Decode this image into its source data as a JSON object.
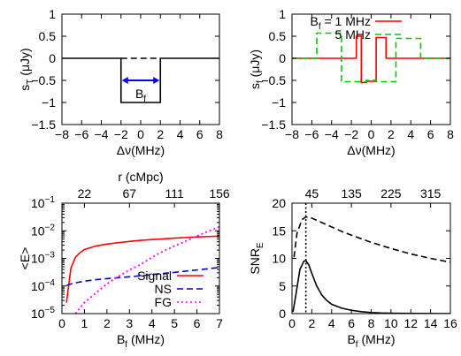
{
  "chart_data": [
    {
      "id": "a",
      "type": "line",
      "xlabel": "Δν(MHz)",
      "ylabel": "s_T (μJy)",
      "xlim": [
        -8,
        8
      ],
      "ylim": [
        -1.5,
        1
      ],
      "xticks": [
        -8,
        -6,
        -4,
        -2,
        0,
        2,
        4,
        6,
        8
      ],
      "yticks": [
        -1.5,
        -1,
        -0.5,
        0,
        0.5,
        1
      ],
      "ytick_labels": [
        "−1.5",
        "−1",
        "−0.5",
        "0",
        "0.5",
        "1"
      ],
      "xtick_labels": [
        "−8",
        "−6",
        "−4",
        "−2",
        "0",
        "2",
        "4",
        "6",
        "8"
      ],
      "series": [
        {
          "style": "solid",
          "color": "#000000",
          "x": [
            -8,
            -2,
            -2,
            2,
            2,
            8
          ],
          "y": [
            0,
            0,
            -1,
            -1,
            0,
            0
          ]
        },
        {
          "style": "dashed",
          "color": "#000000",
          "x": [
            -2,
            2
          ],
          "y": [
            0,
            0
          ]
        }
      ],
      "annotation": {
        "text": "B",
        "sub": "f",
        "x_from": -2,
        "x_to": 2,
        "y": -0.5,
        "color": "#0000ff"
      }
    },
    {
      "id": "b",
      "type": "line",
      "xlabel": "Δν(MHz)",
      "ylabel": "s_f (μJy)",
      "xlim": [
        -8,
        8
      ],
      "ylim": [
        -1.5,
        1
      ],
      "xticks": [
        -8,
        -6,
        -4,
        -2,
        0,
        2,
        4,
        6,
        8
      ],
      "yticks": [
        -1.5,
        -1,
        -0.5,
        0,
        0.5,
        1
      ],
      "ytick_labels": [
        "−1.5",
        "−1",
        "−0.5",
        "0",
        "0.5",
        "1"
      ],
      "xtick_labels": [
        "−8",
        "−6",
        "−4",
        "−2",
        "0",
        "2",
        "4",
        "6",
        "8"
      ],
      "legend_position": "top-right",
      "series": [
        {
          "name": "B_f = 1 MHz",
          "legend_main": "B",
          "legend_sub": "f",
          "legend_rest": " = 1 MHz",
          "style": "solid",
          "color": "#ff0000",
          "x": [
            -8,
            -1.5,
            -1.5,
            -1,
            -1,
            -0.5,
            -0.5,
            0.5,
            0.5,
            1,
            1,
            1.5,
            1.5,
            8
          ],
          "y": [
            0,
            0,
            0.5,
            0.5,
            -0.55,
            -0.55,
            -0.52,
            -0.52,
            0.47,
            0.47,
            0.47,
            0.47,
            0,
            0
          ]
        },
        {
          "name": "5 MHz",
          "legend_main": "5 MHz",
          "legend_sub": "",
          "legend_rest": "",
          "style": "dashed",
          "color": "#00cc00",
          "x": [
            -8,
            -5.5,
            -5.5,
            -3,
            -3,
            -0.5,
            -0.5,
            0.5,
            0.5,
            2.5,
            2.5,
            5,
            5,
            8
          ],
          "y": [
            0,
            0,
            0.57,
            0.57,
            -0.53,
            -0.53,
            -0.5,
            -0.5,
            -0.53,
            -0.53,
            0.45,
            0.45,
            0,
            0
          ]
        }
      ]
    },
    {
      "id": "c",
      "type": "line",
      "xlabel": "B_f (MHz)",
      "ylabel": "<E>",
      "top_xlabel": "r (cMpc)",
      "xlim": [
        0,
        7
      ],
      "ylim": [
        1e-05,
        0.1
      ],
      "yscale": "log",
      "xticks": [
        0,
        1,
        2,
        3,
        4,
        5,
        6,
        7
      ],
      "yticks": [
        1e-05,
        0.0001,
        0.001,
        0.01,
        0.1
      ],
      "ytick_labels": [
        [
          "10",
          "−5"
        ],
        [
          "10",
          "−4"
        ],
        [
          "10",
          "−3"
        ],
        [
          "10",
          "−2"
        ],
        [
          "10",
          "−1"
        ]
      ],
      "top_ticks": [
        {
          "label": "22",
          "x": 1
        },
        {
          "label": "67",
          "x": 3
        },
        {
          "label": "111",
          "x": 5
        },
        {
          "label": "156",
          "x": 7
        }
      ],
      "legend_position": "bottom-center",
      "series": [
        {
          "name": "Signal",
          "style": "solid",
          "color": "#ff0000",
          "x": [
            0.2,
            0.4,
            0.6,
            0.8,
            1.0,
            1.5,
            2.0,
            2.5,
            3.0,
            3.5,
            4.0,
            4.5,
            5.0,
            5.5,
            6.0,
            6.5,
            7.0
          ],
          "y": [
            2.5e-05,
            0.00045,
            0.0011,
            0.0016,
            0.0021,
            0.0028,
            0.0033,
            0.0037,
            0.0041,
            0.0045,
            0.0048,
            0.0051,
            0.0054,
            0.0057,
            0.006,
            0.0062,
            0.0064
          ]
        },
        {
          "name": "NS",
          "style": "dashed",
          "color": "#0000cc",
          "x": [
            0.2,
            0.5,
            1.0,
            1.5,
            2.0,
            2.5,
            3.0,
            3.5,
            4.0,
            4.5,
            5.0,
            5.5,
            6.0,
            6.5,
            7.0
          ],
          "y": [
            0.000105,
            0.000125,
            0.00015,
            0.00017,
            0.000185,
            0.0002,
            0.000215,
            0.000235,
            0.00026,
            0.000285,
            0.00031,
            0.000345,
            0.00038,
            0.00042,
            0.00047
          ]
        },
        {
          "name": "FG",
          "style": "dotted",
          "color": "#ff00ff",
          "x": [
            0.6,
            0.8,
            1.0,
            1.5,
            2.0,
            2.5,
            3.0,
            3.5,
            4.0,
            4.5,
            5.0,
            5.5,
            6.0,
            6.5,
            7.0
          ],
          "y": [
            1e-05,
            1.6e-05,
            2.5e-05,
            5.5e-05,
            0.00012,
            0.00022,
            0.00038,
            0.0006,
            0.0011,
            0.0018,
            0.0028,
            0.0042,
            0.0065,
            0.0095,
            0.014
          ]
        }
      ]
    },
    {
      "id": "d",
      "type": "line",
      "xlabel": "B_f (MHz)",
      "ylabel": "SNR_E",
      "xlim": [
        0,
        16
      ],
      "ylim": [
        0,
        20
      ],
      "xticks": [
        0,
        2,
        4,
        6,
        8,
        10,
        12,
        14,
        16
      ],
      "yticks": [
        0,
        5,
        10,
        15,
        20
      ],
      "top_ticks": [
        {
          "label": "45",
          "x": 2
        },
        {
          "label": "135",
          "x": 6
        },
        {
          "label": "225",
          "x": 10
        },
        {
          "label": "315",
          "x": 14
        }
      ],
      "vline": {
        "x": 1.4,
        "style": "dotted"
      },
      "series": [
        {
          "style": "dashed",
          "color": "#000000",
          "x": [
            0.2,
            0.5,
            1.0,
            1.4,
            2.0,
            3.0,
            4.0,
            5.0,
            6.0,
            8.0,
            10.0,
            12.0,
            14.0,
            16.0
          ],
          "y": [
            10.2,
            14.5,
            17.0,
            17.5,
            17.3,
            16.5,
            15.7,
            14.9,
            14.2,
            12.9,
            11.8,
            10.8,
            10.0,
            9.3
          ]
        },
        {
          "style": "solid",
          "color": "#000000",
          "x": [
            0.1,
            0.4,
            0.8,
            1.2,
            1.4,
            1.7,
            2.0,
            2.5,
            3.0,
            3.5,
            4.0,
            5.0,
            6.0,
            7.0,
            8.0,
            9.0,
            10.0,
            12.0,
            16.0
          ],
          "y": [
            0.3,
            3.5,
            8.0,
            9.5,
            9.6,
            8.8,
            7.3,
            5.0,
            3.4,
            2.4,
            1.7,
            1.0,
            0.6,
            0.35,
            0.2,
            0.12,
            0.08,
            0.03,
            0.0
          ]
        }
      ]
    }
  ]
}
